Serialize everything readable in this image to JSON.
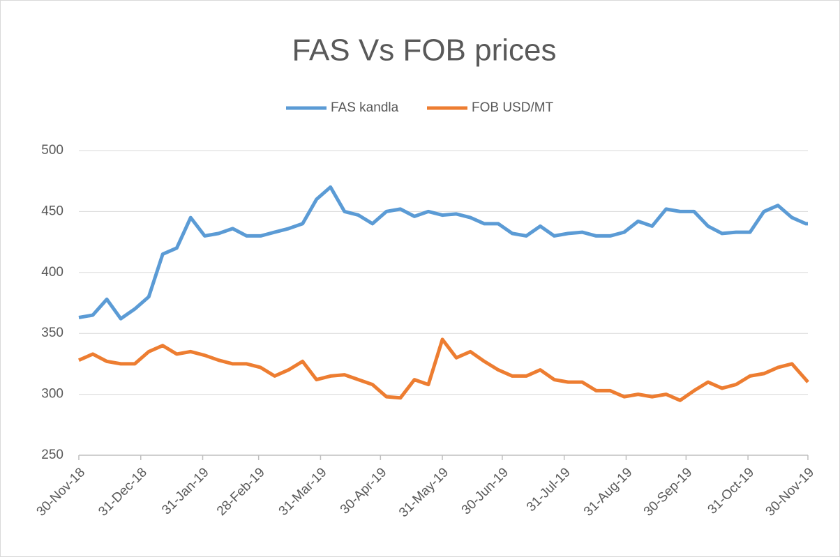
{
  "chart_data": {
    "type": "line",
    "title": "FAS Vs FOB prices",
    "x": [
      "2018-11-30",
      "2018-12-07",
      "2018-12-14",
      "2018-12-21",
      "2018-12-28",
      "2019-01-04",
      "2019-01-11",
      "2019-01-18",
      "2019-01-25",
      "2019-02-01",
      "2019-02-08",
      "2019-02-15",
      "2019-02-22",
      "2019-03-01",
      "2019-03-08",
      "2019-03-15",
      "2019-03-22",
      "2019-03-29",
      "2019-04-05",
      "2019-04-12",
      "2019-04-19",
      "2019-04-26",
      "2019-05-03",
      "2019-05-10",
      "2019-05-17",
      "2019-05-24",
      "2019-05-31",
      "2019-06-07",
      "2019-06-14",
      "2019-06-21",
      "2019-06-28",
      "2019-07-05",
      "2019-07-12",
      "2019-07-19",
      "2019-07-26",
      "2019-08-02",
      "2019-08-09",
      "2019-08-16",
      "2019-08-23",
      "2019-08-30",
      "2019-09-06",
      "2019-09-13",
      "2019-09-20",
      "2019-09-27",
      "2019-10-04",
      "2019-10-11",
      "2019-10-18",
      "2019-10-25",
      "2019-11-01",
      "2019-11-08",
      "2019-11-15",
      "2019-11-22",
      "2019-11-29",
      "2019-11-30"
    ],
    "series": [
      {
        "name": "FAS kandla",
        "color": "#5b9bd5",
        "values": [
          363,
          365,
          378,
          362,
          370,
          380,
          415,
          420,
          445,
          430,
          432,
          436,
          430,
          430,
          433,
          436,
          440,
          460,
          470,
          450,
          447,
          440,
          450,
          452,
          446,
          450,
          447,
          448,
          445,
          440,
          440,
          432,
          430,
          438,
          430,
          432,
          433,
          430,
          430,
          433,
          442,
          438,
          452,
          450,
          450,
          438,
          432,
          433,
          433,
          450,
          455,
          445,
          440,
          440
        ]
      },
      {
        "name": "FOB USD/MT",
        "color": "#ed7d31",
        "values": [
          328,
          333,
          327,
          325,
          325,
          335,
          340,
          333,
          335,
          332,
          328,
          325,
          325,
          322,
          315,
          320,
          327,
          312,
          315,
          316,
          312,
          308,
          298,
          297,
          312,
          308,
          345,
          330,
          335,
          327,
          320,
          315,
          315,
          320,
          312,
          310,
          310,
          303,
          303,
          298,
          300,
          298,
          300,
          295,
          303,
          310,
          305,
          308,
          315,
          317,
          322,
          325,
          312,
          310
        ]
      }
    ],
    "xlim": [
      "2018-11-30",
      "2019-11-30"
    ],
    "xticks": [
      {
        "value": "2018-11-30",
        "label": "30-Nov-18"
      },
      {
        "value": "2018-12-31",
        "label": "31-Dec-18"
      },
      {
        "value": "2019-01-31",
        "label": "31-Jan-19"
      },
      {
        "value": "2019-02-28",
        "label": "28-Feb-19"
      },
      {
        "value": "2019-03-31",
        "label": "31-Mar-19"
      },
      {
        "value": "2019-04-30",
        "label": "30-Apr-19"
      },
      {
        "value": "2019-05-31",
        "label": "31-May-19"
      },
      {
        "value": "2019-06-30",
        "label": "30-Jun-19"
      },
      {
        "value": "2019-07-31",
        "label": "31-Jul-19"
      },
      {
        "value": "2019-08-31",
        "label": "31-Aug-19"
      },
      {
        "value": "2019-09-30",
        "label": "30-Sep-19"
      },
      {
        "value": "2019-10-31",
        "label": "31-Oct-19"
      },
      {
        "value": "2019-11-30",
        "label": "30-Nov-19"
      }
    ],
    "ylim": [
      250,
      500
    ],
    "yticks": [
      250,
      300,
      350,
      400,
      450,
      500
    ],
    "grid": true,
    "legend": "top"
  }
}
